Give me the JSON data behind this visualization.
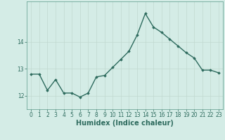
{
  "x": [
    0,
    1,
    2,
    3,
    4,
    5,
    6,
    7,
    8,
    9,
    10,
    11,
    12,
    13,
    14,
    15,
    16,
    17,
    18,
    19,
    20,
    21,
    22,
    23
  ],
  "y": [
    12.8,
    12.8,
    12.2,
    12.6,
    12.1,
    12.1,
    11.95,
    12.1,
    12.7,
    12.75,
    13.05,
    13.35,
    13.65,
    14.25,
    15.05,
    14.55,
    14.35,
    14.1,
    13.85,
    13.6,
    13.4,
    12.95,
    12.95,
    12.85
  ],
  "line_color": "#2e6b5e",
  "marker": "D",
  "marker_size": 1.8,
  "linewidth": 1.0,
  "xlabel": "Humidex (Indice chaleur)",
  "xlabel_fontsize": 7,
  "ylim": [
    11.5,
    15.5
  ],
  "xlim": [
    -0.5,
    23.5
  ],
  "yticks": [
    12,
    13,
    14
  ],
  "xticks": [
    0,
    1,
    2,
    3,
    4,
    5,
    6,
    7,
    8,
    9,
    10,
    11,
    12,
    13,
    14,
    15,
    16,
    17,
    18,
    19,
    20,
    21,
    22,
    23
  ],
  "tick_fontsize": 5.5,
  "grid_color": "#c0d8d0",
  "bg_color": "#d4ece6",
  "fig_bg_color": "#d4ece6",
  "spine_color": "#5a9a8a"
}
